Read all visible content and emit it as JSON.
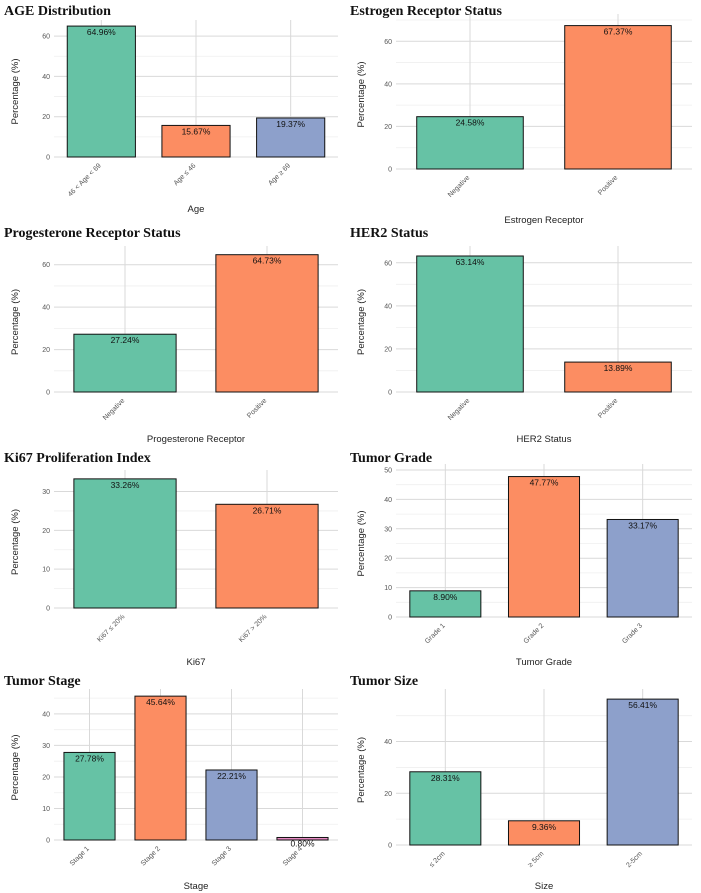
{
  "colors": {
    "green": "#66c2a5",
    "orange": "#fc8d62",
    "blue": "#8da0cb",
    "pink": "#e78ac3"
  },
  "chart_data": [
    {
      "type": "bar",
      "title": "AGE Distribution",
      "xlabel": "Age",
      "ylabel": "Percentage (%)",
      "categories": [
        "46 < Age < 69",
        "Age ≤ 46",
        "Age ≥ 69"
      ],
      "values": [
        64.96,
        15.67,
        19.37
      ],
      "labels": [
        "64.96%",
        "15.67%",
        "19.37%"
      ],
      "colors": [
        "green",
        "orange",
        "blue"
      ],
      "ylim": [
        0,
        65
      ],
      "yticks": [
        0,
        20,
        40,
        60
      ],
      "grid": true
    },
    {
      "type": "bar",
      "title": "Estrogen Receptor Status",
      "xlabel": "Estrogen Receptor",
      "ylabel": "Percentage (%)",
      "categories": [
        "Negative",
        "Positive"
      ],
      "values": [
        24.58,
        67.37
      ],
      "labels": [
        "24.58%",
        "67.37%"
      ],
      "colors": [
        "green",
        "orange"
      ],
      "ylim": [
        0,
        70
      ],
      "yticks": [
        0,
        20,
        40,
        60
      ],
      "grid": true
    },
    {
      "type": "bar",
      "title": "Progesterone Receptor Status",
      "xlabel": "Progesterone Receptor",
      "ylabel": "Percentage (%)",
      "categories": [
        "Negative",
        "Positive"
      ],
      "values": [
        27.24,
        64.73
      ],
      "labels": [
        "27.24%",
        "64.73%"
      ],
      "colors": [
        "green",
        "orange"
      ],
      "ylim": [
        0,
        66
      ],
      "yticks": [
        0,
        20,
        40,
        60
      ],
      "grid": true
    },
    {
      "type": "bar",
      "title": "HER2 Status",
      "xlabel": "HER2 Status",
      "ylabel": "Percentage (%)",
      "categories": [
        "Negative",
        "Positive"
      ],
      "values": [
        63.14,
        13.89
      ],
      "labels": [
        "63.14%",
        "13.89%"
      ],
      "colors": [
        "green",
        "orange"
      ],
      "ylim": [
        0,
        65
      ],
      "yticks": [
        0,
        20,
        40,
        60
      ],
      "grid": true
    },
    {
      "type": "bar",
      "title": "Ki67 Proliferation Index",
      "xlabel": "Ki67",
      "ylabel": "Percentage (%)",
      "categories": [
        "Ki67 ≤ 20%",
        "Ki67 > 20%"
      ],
      "values": [
        33.26,
        26.71
      ],
      "labels": [
        "33.26%",
        "26.71%"
      ],
      "colors": [
        "green",
        "orange"
      ],
      "ylim": [
        0,
        34
      ],
      "yticks": [
        0,
        10,
        20,
        30
      ],
      "grid": true
    },
    {
      "type": "bar",
      "title": "Tumor Grade",
      "xlabel": "Tumor Grade",
      "ylabel": "Percentage (%)",
      "categories": [
        "Grade 1",
        "Grade 2",
        "Grade 3"
      ],
      "values": [
        8.9,
        47.77,
        33.17
      ],
      "labels": [
        "8.90%",
        "47.77%",
        "33.17%"
      ],
      "colors": [
        "green",
        "orange",
        "blue"
      ],
      "ylim": [
        0,
        50
      ],
      "yticks": [
        0,
        10,
        20,
        30,
        40,
        50
      ],
      "grid": true
    },
    {
      "type": "bar",
      "title": "Tumor Stage",
      "xlabel": "Stage",
      "ylabel": "Percentage (%)",
      "categories": [
        "Stage 1",
        "Stage 2",
        "Stage 3",
        "Stage 4"
      ],
      "values": [
        27.78,
        45.64,
        22.21,
        0.8
      ],
      "labels": [
        "27.78%",
        "45.64%",
        "22.21%",
        "0.80%"
      ],
      "colors": [
        "green",
        "orange",
        "blue",
        "pink"
      ],
      "ylim": [
        0,
        46
      ],
      "yticks": [
        0,
        10,
        20,
        30,
        40
      ],
      "grid": true
    },
    {
      "type": "bar",
      "title": "Tumor Size",
      "xlabel": "Size",
      "ylabel": "Percentage (%)",
      "categories": [
        "≤ 2cm",
        "≥ 5cm",
        "2-5cm"
      ],
      "values": [
        28.31,
        9.36,
        56.41
      ],
      "labels": [
        "28.31%",
        "9.36%",
        "56.41%"
      ],
      "colors": [
        "green",
        "orange",
        "blue"
      ],
      "ylim": [
        0,
        58
      ],
      "yticks": [
        0,
        20,
        40
      ],
      "grid": true
    }
  ]
}
